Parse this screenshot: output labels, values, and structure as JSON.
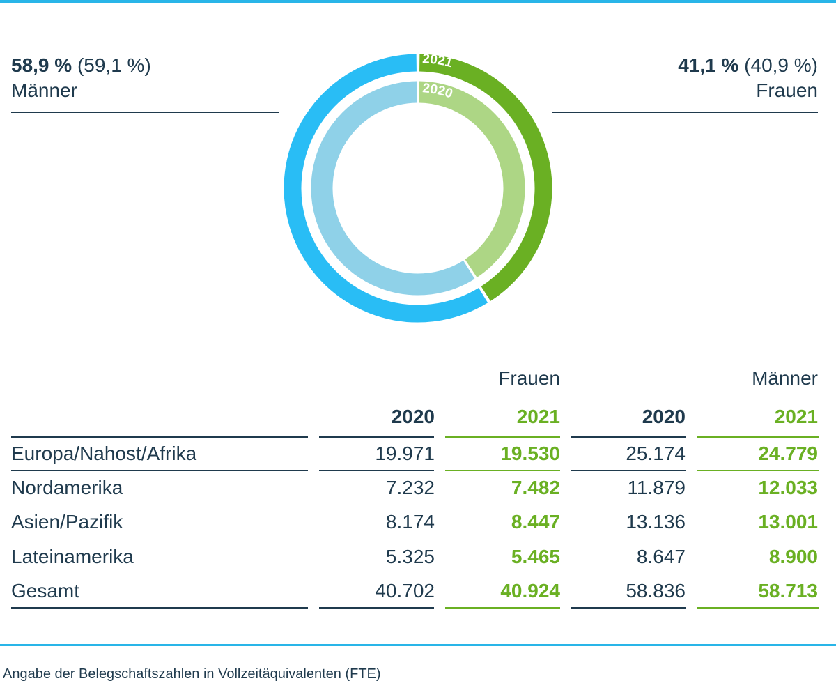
{
  "summary": {
    "men": {
      "pct": "58,9 %",
      "prev": "(59,1 %)",
      "label": "Männer"
    },
    "women": {
      "pct": "41,1 %",
      "prev": "(40,9 %)",
      "label": "Frauen"
    }
  },
  "chart_data": {
    "type": "pie",
    "title": "",
    "rings": [
      {
        "name": "2021",
        "slices": [
          {
            "label": "Frauen",
            "value": 41.1,
            "color": "#6ab023"
          },
          {
            "label": "Männer",
            "value": 58.9,
            "color": "#29bdf5"
          }
        ]
      },
      {
        "name": "2020",
        "slices": [
          {
            "label": "Frauen",
            "value": 40.9,
            "color": "#add685"
          },
          {
            "label": "Männer",
            "value": 59.1,
            "color": "#8fd1e8"
          }
        ]
      }
    ],
    "ring_labels": [
      "2021",
      "2020"
    ]
  },
  "table": {
    "group_headers": [
      "Frauen",
      "Männer"
    ],
    "years": [
      "2020",
      "2021",
      "2020",
      "2021"
    ],
    "rows": [
      {
        "label": "Europa/Nahost/Afrika",
        "values": [
          "19.971",
          "19.530",
          "25.174",
          "24.779"
        ]
      },
      {
        "label": "Nordamerika",
        "values": [
          "7.232",
          "7.482",
          "11.879",
          "12.033"
        ]
      },
      {
        "label": "Asien/Pazifik",
        "values": [
          "8.174",
          "8.447",
          "13.136",
          "13.001"
        ]
      },
      {
        "label": "Lateinamerika",
        "values": [
          "5.325",
          "5.465",
          "8.647",
          "8.900"
        ]
      },
      {
        "label": "Gesamt",
        "values": [
          "40.702",
          "40.924",
          "58.836",
          "58.713"
        ]
      }
    ]
  },
  "footnote": "Angabe der Belegschaftszahlen in Vollzeitäquivalenten (FTE)",
  "colors": {
    "dark": "#1f3a4d",
    "green": "#6ab023",
    "blue": "#29b5e8"
  }
}
